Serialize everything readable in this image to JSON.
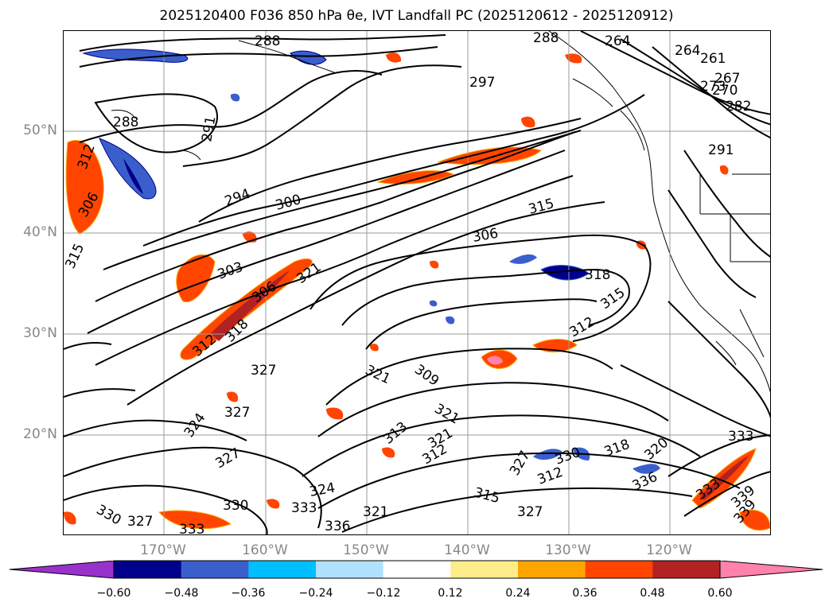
{
  "title": "2025120400 F036 850 hPa θe, IVT Landfall PC (2025120612 - 2025120912)",
  "lat_labels": [
    "50°N",
    "40°N",
    "30°N",
    "20°N"
  ],
  "lon_labels": [
    "170°W",
    "160°W",
    "150°W",
    "140°W",
    "130°W",
    "120°W"
  ],
  "colorbar": {
    "ticks": [
      "−0.60",
      "−0.48",
      "−0.36",
      "−0.24",
      "−0.12",
      "0.12",
      "0.24",
      "0.36",
      "0.48",
      "0.60"
    ],
    "colors": [
      "#9932cc",
      "#00008b",
      "#3a5fcd",
      "#00bfff",
      "#b0e2ff",
      "#ffffff",
      "#ffec8b",
      "#ffa500",
      "#ff4500",
      "#b22222",
      "#ff82ab"
    ]
  },
  "contour_labels": [
    "288",
    "288",
    "264",
    "264",
    "261",
    "267",
    "270",
    "273",
    "282",
    "297",
    "291",
    "288",
    "291",
    "294",
    "300",
    "306",
    "312",
    "315",
    "303",
    "321",
    "306",
    "315",
    "306",
    "318",
    "315",
    "312",
    "312",
    "318",
    "327",
    "321",
    "309",
    "321",
    "327",
    "324",
    "313",
    "321",
    "312",
    "327",
    "324",
    "333",
    "330",
    "327",
    "333",
    "336",
    "321",
    "315",
    "327",
    "312",
    "336",
    "318",
    "320",
    "330",
    "333",
    "327",
    "339",
    "339",
    "330",
    "333"
  ]
}
